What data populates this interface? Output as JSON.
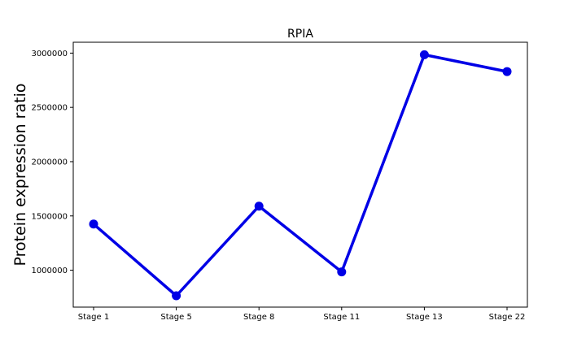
{
  "chart_data": {
    "type": "line",
    "title": "RPIA",
    "xlabel": "",
    "ylabel": "Protein expression ratio",
    "categories": [
      "Stage 1",
      "Stage 5",
      "Stage 8",
      "Stage 11",
      "Stage 13",
      "Stage 22"
    ],
    "series": [
      {
        "values": [
          1425000,
          765000,
          1590000,
          985000,
          2985000,
          2830000
        ],
        "color": "#0000e6"
      }
    ],
    "yticks": [
      1000000,
      1500000,
      2000000,
      2500000,
      3000000
    ],
    "ytick_labels": [
      "1000000",
      "1500000",
      "2000000",
      "2500000",
      "3000000"
    ],
    "ylim": [
      660000,
      3100000
    ],
    "grid": false,
    "legend": "none"
  }
}
